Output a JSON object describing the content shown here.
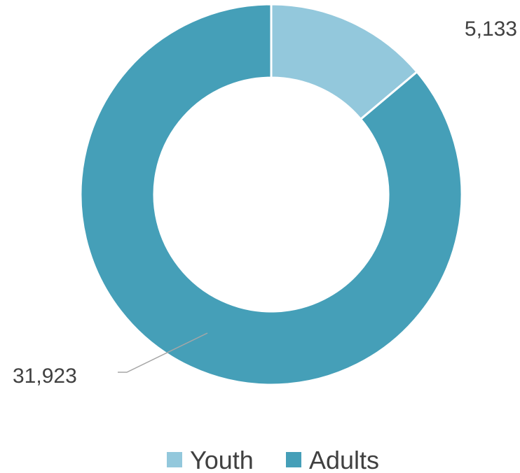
{
  "chart_data": {
    "type": "pie",
    "donut": true,
    "categories": [
      "Youth",
      "Adults"
    ],
    "values": [
      5133,
      31923
    ],
    "value_labels": [
      "5,133",
      "31,923"
    ],
    "colors": [
      "#93c8dc",
      "#459fb8"
    ],
    "legend_position": "bottom",
    "title": ""
  }
}
